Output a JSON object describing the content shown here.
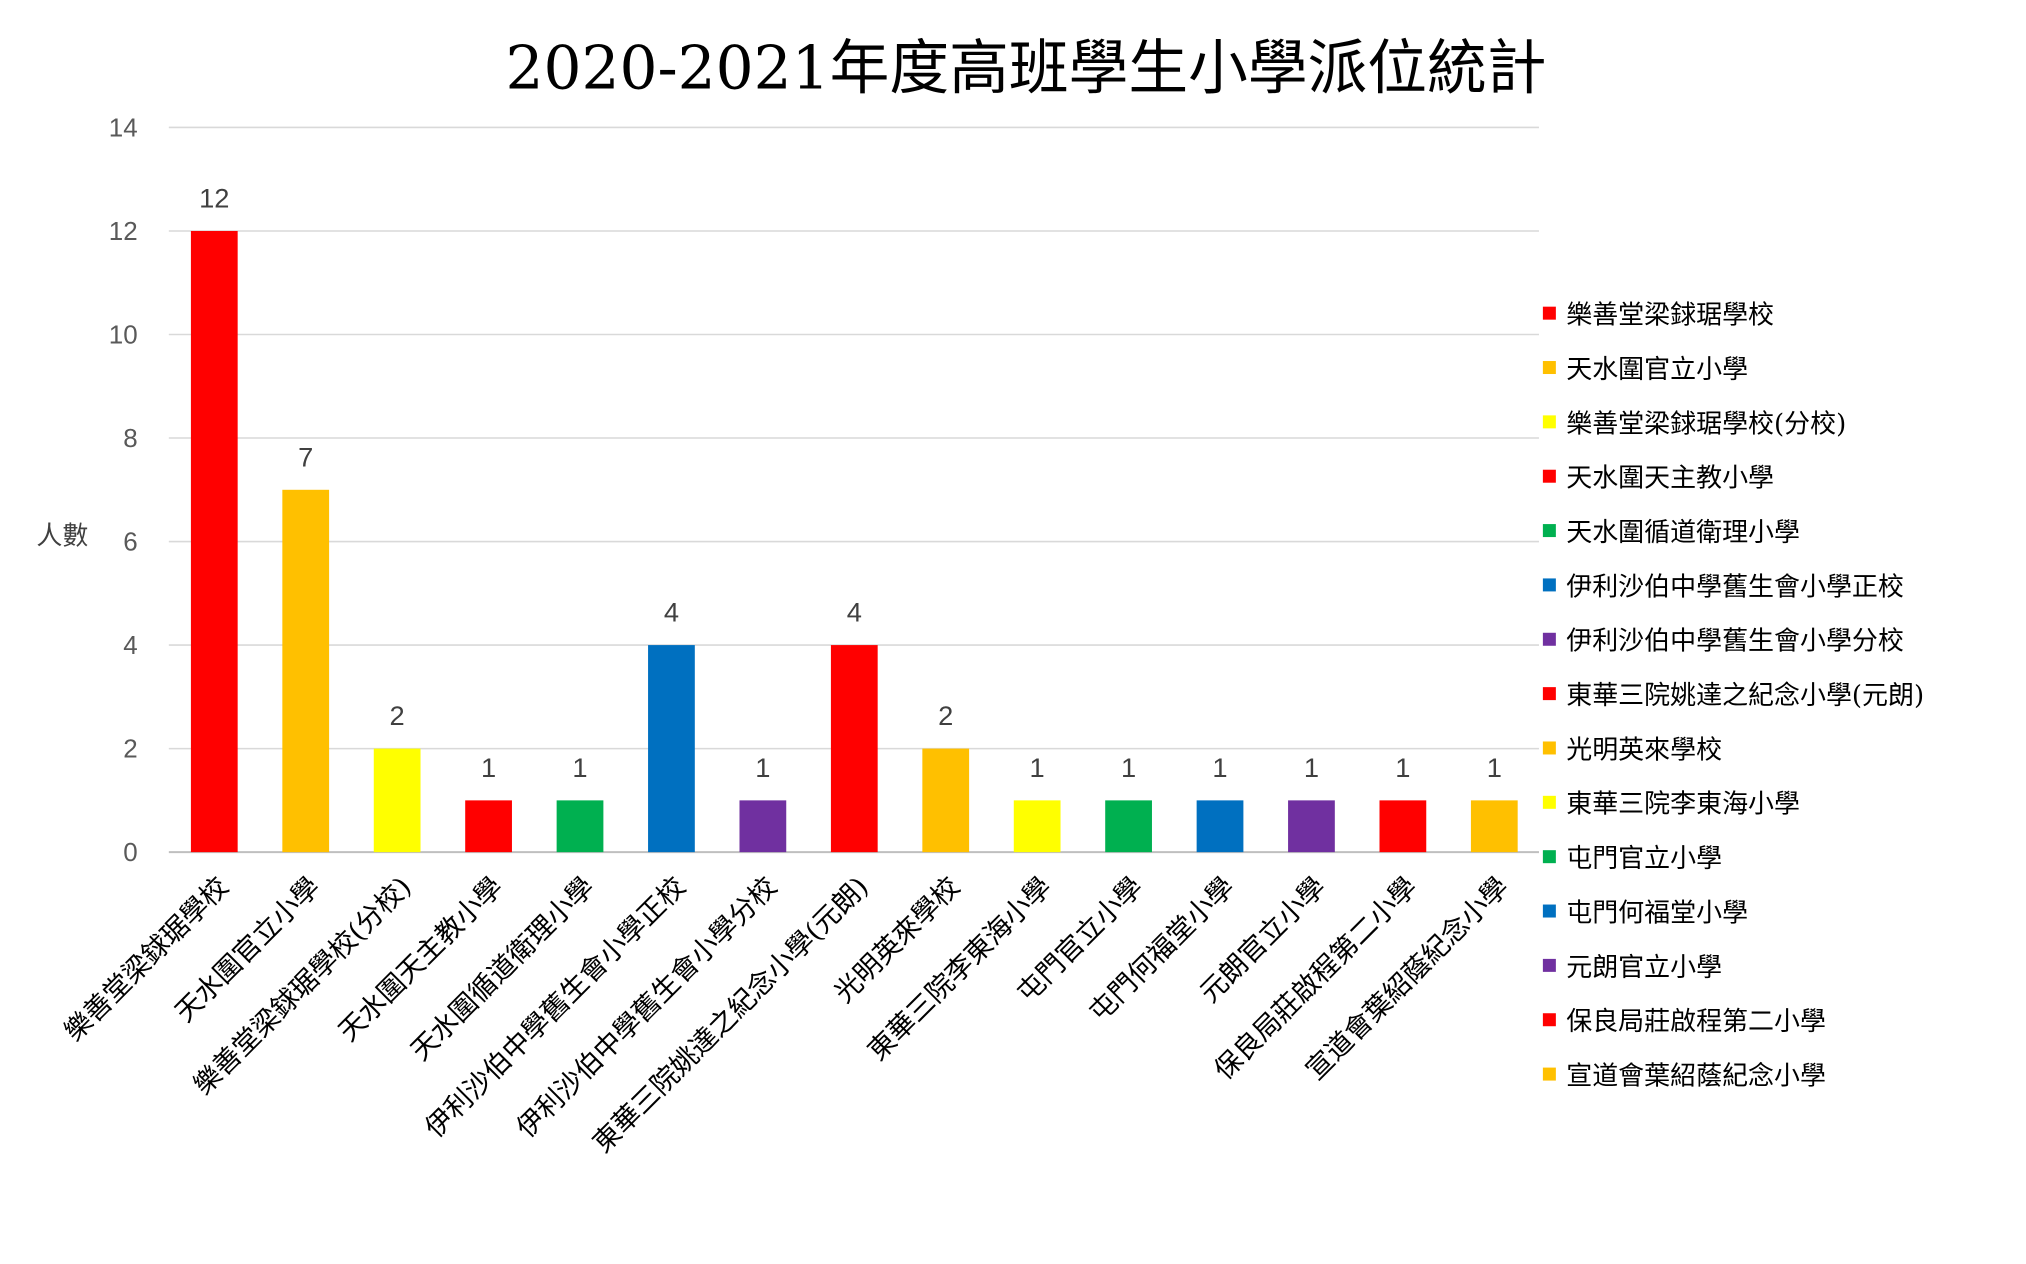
{
  "chart_data": {
    "type": "bar",
    "title": "2020-2021年度高班學生小學派位統計",
    "xlabel": "",
    "ylabel": "人數",
    "ylim": [
      0,
      14
    ],
    "yticks": [
      0,
      2,
      4,
      6,
      8,
      10,
      12,
      14
    ],
    "grid": true,
    "legend_position": "right",
    "categories": [
      "樂善堂梁銶琚學校",
      "天水圍官立小學",
      "樂善堂梁銶琚學校(分校)",
      "天水圍天主教小學",
      "天水圍循道衛理小學",
      "伊利沙伯中學舊生會小學正校",
      "伊利沙伯中學舊生會小學分校",
      "東華三院姚達之紀念小學(元朗)",
      "光明英來學校",
      "東華三院李東海小學",
      "屯門官立小學",
      "屯門何福堂小學",
      "元朗官立小學",
      "保良局莊啟程第二小學",
      "宣道會葉紹蔭紀念小學"
    ],
    "values": [
      12,
      7,
      2,
      1,
      1,
      4,
      1,
      4,
      2,
      1,
      1,
      1,
      1,
      1,
      1
    ],
    "colors": [
      "#FF0000",
      "#FFC000",
      "#FFFF00",
      "#FF0000",
      "#00B050",
      "#0070C0",
      "#7030A0",
      "#FF0000",
      "#FFC000",
      "#FFFF00",
      "#00B050",
      "#0070C0",
      "#7030A0",
      "#FF0000",
      "#FFC000"
    ]
  }
}
